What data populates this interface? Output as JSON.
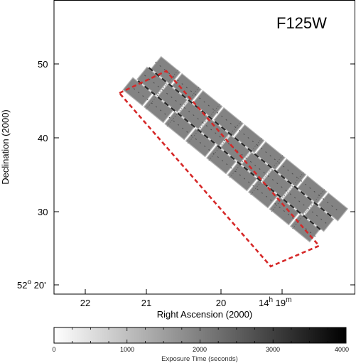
{
  "filter_label": "F125W",
  "axes": {
    "x_title": "Right Ascension (2000)",
    "y_title": "Declination (2000)",
    "x_ticks": [
      {
        "label": "22"
      },
      {
        "label": "21"
      },
      {
        "label": "20"
      },
      {
        "label": "14",
        "sup": "h",
        "after": " 19",
        "sup2": "m"
      }
    ],
    "y_ticks": [
      {
        "label": "50"
      },
      {
        "label": "40"
      },
      {
        "label": "30"
      },
      {
        "label": "52",
        "sup": "o",
        "after": " 20'"
      }
    ]
  },
  "colorbar": {
    "title": "Exposure Time (seconds)",
    "ticks": [
      "0",
      "1000",
      "2000",
      "3000",
      "4000"
    ],
    "range": [
      0,
      4000
    ],
    "colors": {
      "low": "#ffffff",
      "high": "#000000"
    }
  },
  "mosaic": {
    "fill_color": "#838383",
    "edge_color": "#b4b4b4",
    "overlap_color": "#2b2b2b",
    "footprint_color": "#d62828",
    "footprint_style": "dashed",
    "columns": 3,
    "tiles_per_column": 9
  }
}
